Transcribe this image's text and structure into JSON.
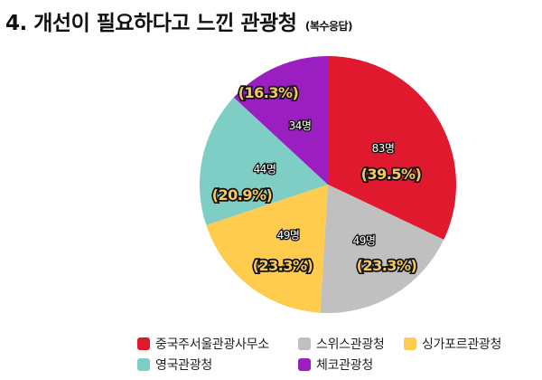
{
  "title": {
    "main": "4. 개선이 필요하다고 느낀 관광청",
    "sub": "(복수응답)"
  },
  "chart_data": {
    "type": "pie",
    "title": "4. 개선이 필요하다고 느낀 관광청 (복수응답)",
    "start_angle": "12 o'clock, clockwise",
    "categories": [
      "중국주서울관광사무소",
      "스위스관광청",
      "싱가포르관광청",
      "영국관광청",
      "체코관광청"
    ],
    "values": [
      83,
      49,
      49,
      44,
      34
    ],
    "unit": "명",
    "percentages": [
      39.5,
      23.3,
      23.3,
      20.9,
      16.3
    ],
    "colors": [
      "#E0192F",
      "#C0C0C0",
      "#FFCC4D",
      "#7ECEC6",
      "#9B1FC0"
    ],
    "labels": [
      {
        "count": "83명",
        "pct": "(39.5%)"
      },
      {
        "count": "49명",
        "pct": "(23.3%)"
      },
      {
        "count": "49명",
        "pct": "(23.3%)"
      },
      {
        "count": "44명",
        "pct": "(20.9%)"
      },
      {
        "count": "34명",
        "pct": "(16.3%)"
      }
    ],
    "legend_position": "bottom"
  },
  "legend": [
    {
      "label": "중국주서울관광사무소",
      "color": "#E0192F"
    },
    {
      "label": "스위스관광청",
      "color": "#C0C0C0"
    },
    {
      "label": "싱가포르관광청",
      "color": "#FFCC4D"
    },
    {
      "label": "영국관광청",
      "color": "#7ECEC6"
    },
    {
      "label": "체코관광청",
      "color": "#9B1FC0"
    }
  ]
}
